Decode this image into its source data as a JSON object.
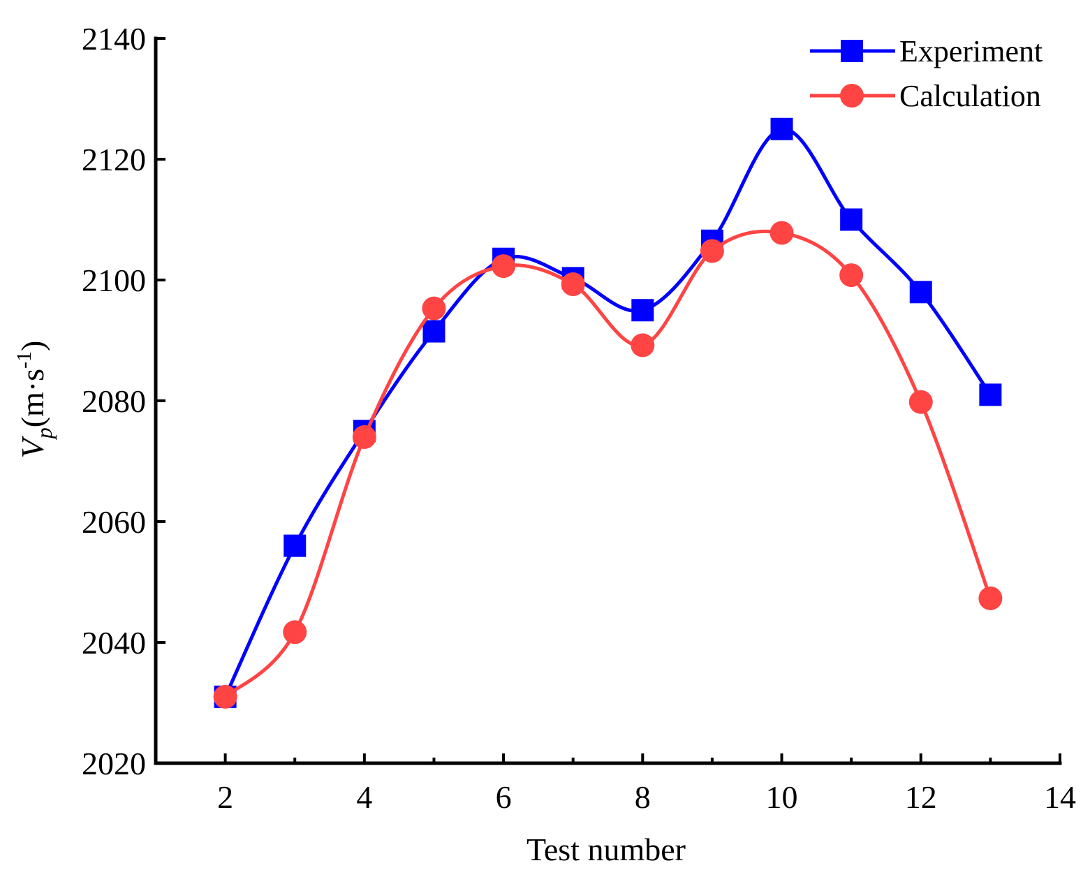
{
  "chart_data": {
    "type": "line",
    "title": "",
    "xlabel": "Test number",
    "ylabel": {
      "main": "V",
      "sub": "p",
      "unit_open": "(m·s",
      "unit_sup": "-1",
      "unit_close": ")"
    },
    "xlim": [
      1,
      14
    ],
    "ylim": [
      2020,
      2140
    ],
    "xticks": [
      2,
      4,
      6,
      8,
      10,
      12,
      14
    ],
    "xminor": [
      3,
      5,
      7,
      9,
      11,
      13
    ],
    "yticks": [
      2020,
      2040,
      2060,
      2080,
      2100,
      2120,
      2140
    ],
    "x": [
      2,
      3,
      4,
      5,
      6,
      7,
      8,
      9,
      10,
      11,
      12,
      13
    ],
    "series": [
      {
        "name": "Experiment",
        "color": "#0000ff",
        "marker": "square",
        "values": [
          2031,
          2056,
          2075,
          2091.5,
          2103.5,
          2100.3,
          2095,
          2106.5,
          2125,
          2110,
          2098,
          2081
        ]
      },
      {
        "name": "Calculation",
        "color": "#ff4444",
        "marker": "circle",
        "values": [
          2031,
          2041.7,
          2074,
          2095.3,
          2102.3,
          2099.3,
          2089.2,
          2104.8,
          2107.8,
          2100.8,
          2079.8,
          2047.3
        ]
      }
    ],
    "legend": "top-right",
    "grid": false
  }
}
